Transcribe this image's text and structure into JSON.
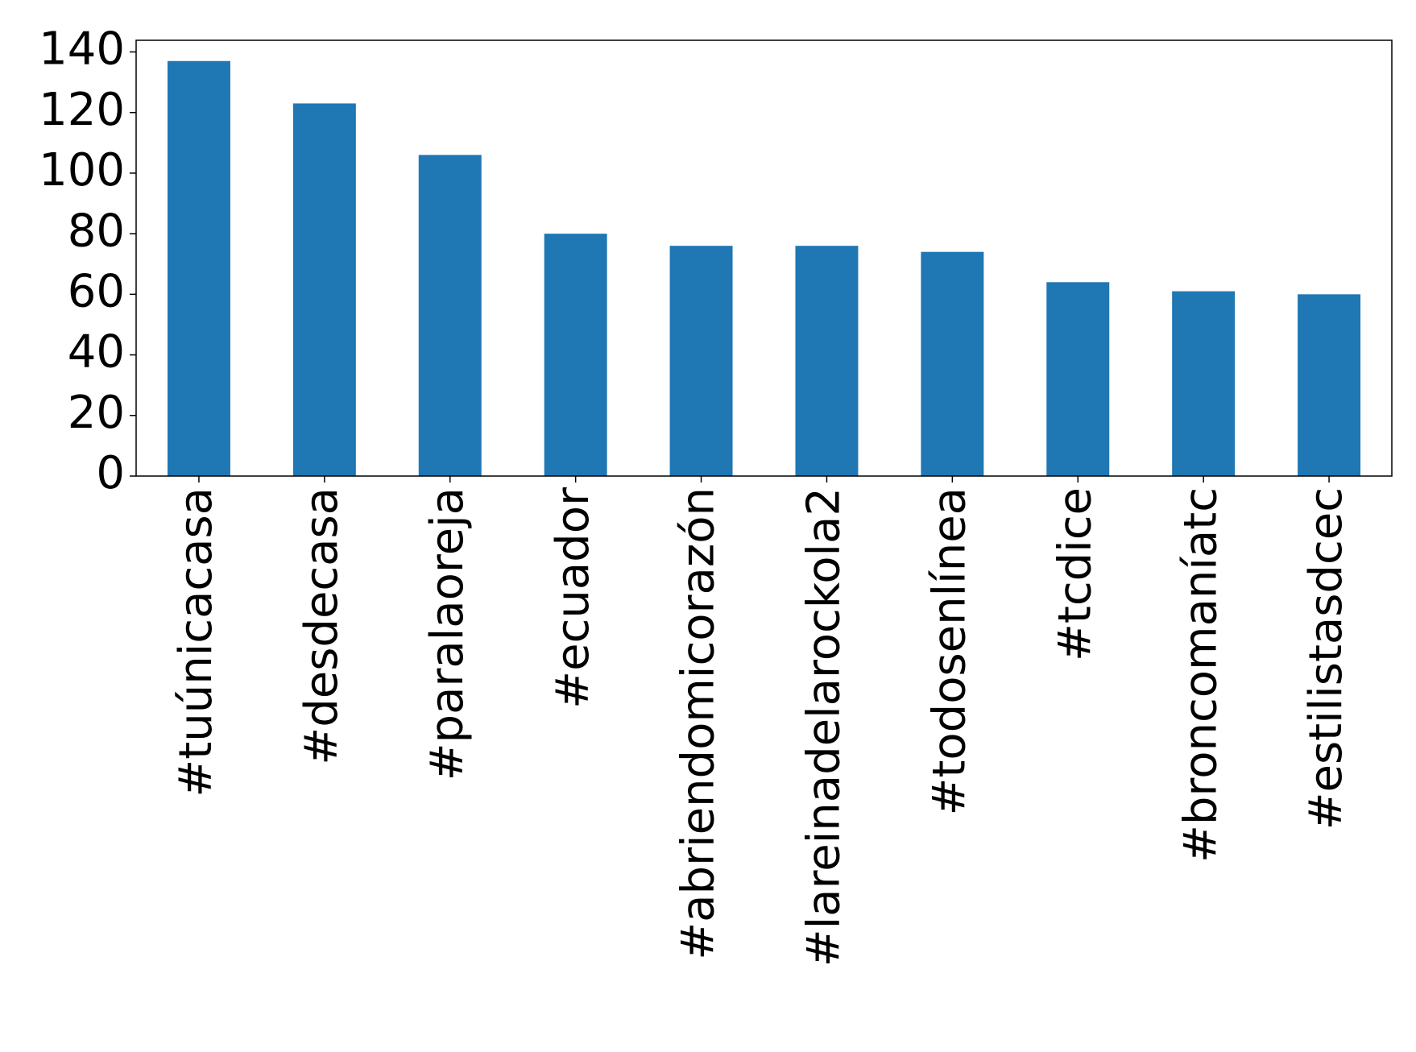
{
  "chart_data": {
    "type": "bar",
    "categories": [
      "#tuúnicacasa",
      "#desdecasa",
      "#paralaoreja",
      "#ecuador",
      "#abriendomicorazón",
      "#lareinadelarockola2",
      "#todosenlínea",
      "#tcdice",
      "#broncomaníatc",
      "#estilistasdcec"
    ],
    "values": [
      137,
      123,
      106,
      80,
      76,
      76,
      74,
      64,
      61,
      60
    ],
    "color": "#1f77b4",
    "ylim": [
      0,
      143.85
    ],
    "yticks": [
      0,
      20,
      40,
      60,
      80,
      100,
      120,
      140
    ],
    "grid": false
  }
}
